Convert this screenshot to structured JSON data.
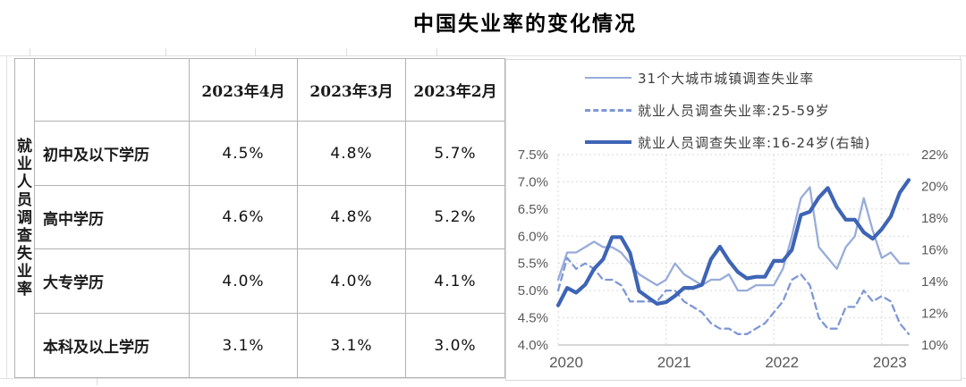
{
  "title": "中国失业率的变化情况",
  "table": {
    "corner_label": "就业人员调查失业率",
    "columns": [
      "2023年4月",
      "2023年3月",
      "2023年2月"
    ],
    "rows": [
      {
        "label": "初中及以下学历",
        "values": [
          "4.5%",
          "4.8%",
          "5.7%"
        ]
      },
      {
        "label": "高中学历",
        "values": [
          "4.6%",
          "4.8%",
          "5.2%"
        ]
      },
      {
        "label": "大专学历",
        "values": [
          "4.0%",
          "4.0%",
          "4.1%"
        ]
      },
      {
        "label": "本科及以上学历",
        "values": [
          "3.1%",
          "3.1%",
          "3.0%"
        ]
      }
    ]
  },
  "chart_data": {
    "type": "line",
    "frequency": "monthly",
    "x_start": "2020-01",
    "x_end": "2023-04",
    "x_tick_labels": [
      "2020",
      "2021",
      "2022",
      "2023"
    ],
    "grid": true,
    "legend_position": "top",
    "text_color": "#595959",
    "left_axis": {
      "min": 4.0,
      "max": 7.5,
      "ticks": [
        "7.5%",
        "7.0%",
        "6.5%",
        "6.0%",
        "5.5%",
        "5.0%",
        "4.5%",
        "4.0%"
      ]
    },
    "right_axis": {
      "min": 10,
      "max": 22,
      "ticks": [
        "22%",
        "20%",
        "18%",
        "16%",
        "14%",
        "12%",
        "10%"
      ]
    },
    "series": [
      {
        "name": "31个大城市城镇调查失业率",
        "axis": "left",
        "style": "solid-light",
        "color": "#98ACDA",
        "values": [
          5.2,
          5.7,
          5.7,
          5.8,
          5.9,
          5.8,
          5.8,
          5.7,
          5.5,
          5.3,
          5.2,
          5.1,
          5.2,
          5.5,
          5.3,
          5.2,
          5.1,
          5.2,
          5.2,
          5.3,
          5.0,
          5.0,
          5.1,
          5.1,
          5.1,
          5.4,
          6.0,
          6.7,
          6.9,
          5.8,
          5.6,
          5.4,
          5.8,
          6.0,
          6.7,
          6.1,
          5.6,
          5.7,
          5.5,
          5.5
        ]
      },
      {
        "name": "就业人员调查失业率:25-59岁",
        "axis": "left",
        "style": "dashed",
        "color": "#7E97D6",
        "values": [
          5.0,
          5.6,
          5.4,
          5.5,
          5.4,
          5.2,
          5.2,
          5.1,
          4.8,
          4.8,
          4.8,
          4.8,
          5.0,
          5.0,
          4.8,
          4.7,
          4.6,
          4.4,
          4.3,
          4.3,
          4.2,
          4.2,
          4.3,
          4.4,
          4.6,
          4.8,
          5.2,
          5.3,
          5.1,
          4.5,
          4.3,
          4.3,
          4.7,
          4.7,
          5.0,
          4.8,
          4.9,
          4.8,
          4.4,
          4.2
        ]
      },
      {
        "name": "就业人员调查失业率:16-24岁(右轴)",
        "axis": "right",
        "style": "solid-thick",
        "color": "#3E64B5",
        "values": [
          12.5,
          13.6,
          13.3,
          13.8,
          14.8,
          15.4,
          16.8,
          16.8,
          15.8,
          13.4,
          13.0,
          12.6,
          12.7,
          13.1,
          13.6,
          13.6,
          13.8,
          15.4,
          16.2,
          15.3,
          14.6,
          14.2,
          14.3,
          14.3,
          15.3,
          15.3,
          16.0,
          18.2,
          18.4,
          19.3,
          19.9,
          18.7,
          17.9,
          17.9,
          17.1,
          16.7,
          17.3,
          18.1,
          19.6,
          20.4
        ]
      }
    ]
  }
}
